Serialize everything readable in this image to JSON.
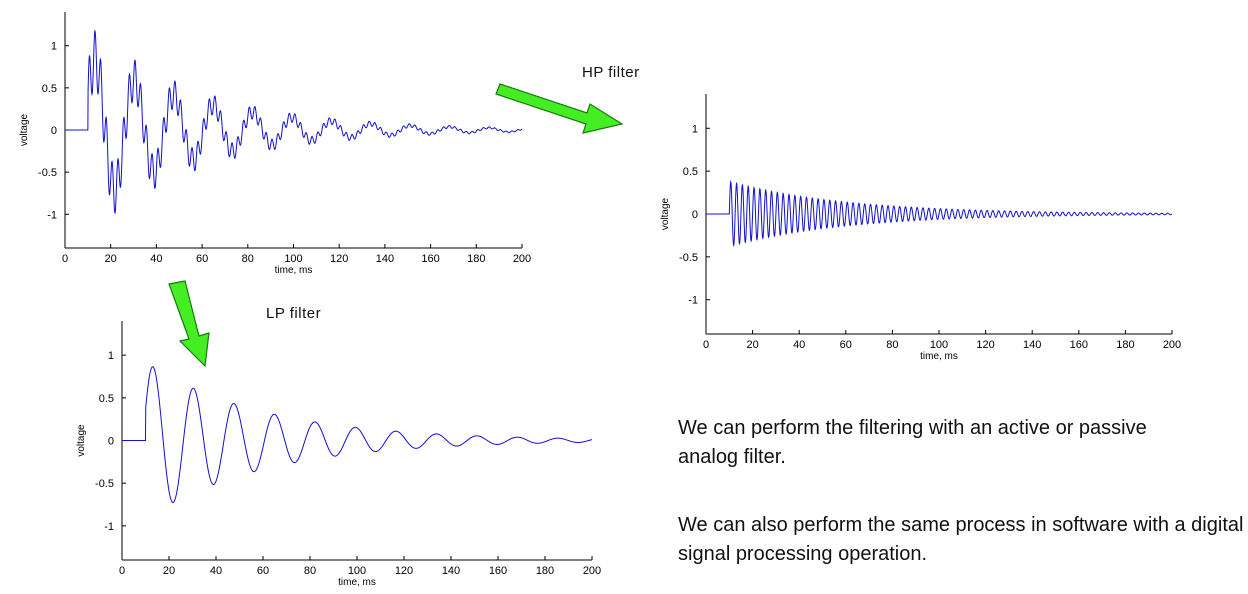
{
  "labels": {
    "hp_filter": "HP filter",
    "lp_filter": "LP filter"
  },
  "notes": {
    "line1": "We can perform the filtering with an active or passive analog filter.",
    "line2": "We can also perform the same process in software with a digital signal processing operation."
  },
  "colors": {
    "trace": "#1010d0",
    "arrow_fill": "#44ee22",
    "arrow_stroke": "#1a7a10"
  },
  "chart_data": [
    {
      "id": "original",
      "type": "line",
      "xlabel": "time, ms",
      "ylabel": "voltage",
      "xlim": [
        0,
        200
      ],
      "ylim": [
        -1.4,
        1.4
      ],
      "xticks": [
        0,
        20,
        40,
        60,
        80,
        100,
        120,
        140,
        160,
        180,
        200
      ],
      "yticks": [
        1,
        0.5,
        0,
        -0.5,
        -1
      ],
      "yticklabels": [
        "1",
        "0.5",
        "0",
        "-0.5",
        "-1"
      ],
      "series": [
        {
          "signal": "original",
          "onset_ms": 10,
          "end_ms": 200,
          "low_freq_hz": 58,
          "high_freq_hz": 400,
          "low_amplitude": 0.9,
          "high_amplitude": 0.35,
          "decay_ms": 50,
          "first_peak": 1.25,
          "first_trough": -1.05
        }
      ]
    },
    {
      "id": "hp",
      "type": "line",
      "xlabel": "time, ms",
      "ylabel": "voltage",
      "xlim": [
        0,
        200
      ],
      "ylim": [
        -1.4,
        1.4
      ],
      "xticks": [
        0,
        20,
        40,
        60,
        80,
        100,
        120,
        140,
        160,
        180,
        200
      ],
      "yticks": [
        1,
        0.5,
        0,
        -0.5,
        -1
      ],
      "yticklabels": [
        "1",
        "0.5",
        "0",
        "-0.5",
        "-1"
      ],
      "series": [
        {
          "signal": "high-pass",
          "onset_ms": 10,
          "end_ms": 200,
          "freq_hz": 400,
          "amplitude": 0.38,
          "decay_ms": 50
        }
      ]
    },
    {
      "id": "lp",
      "type": "line",
      "xlabel": "time, ms",
      "ylabel": "voltage",
      "xlim": [
        0,
        200
      ],
      "ylim": [
        -1.4,
        1.4
      ],
      "xticks": [
        0,
        20,
        40,
        60,
        80,
        100,
        120,
        140,
        160,
        180,
        200
      ],
      "yticks": [
        1,
        0.5,
        0,
        -0.5,
        -1
      ],
      "yticklabels": [
        "1",
        "0.5",
        "0",
        "-0.5",
        "-1"
      ],
      "series": [
        {
          "signal": "low-pass",
          "onset_ms": 10,
          "end_ms": 200,
          "freq_hz": 58,
          "amplitude": 0.92,
          "decay_ms": 50,
          "first_peak": 0.92,
          "first_trough": -0.85
        }
      ]
    }
  ]
}
